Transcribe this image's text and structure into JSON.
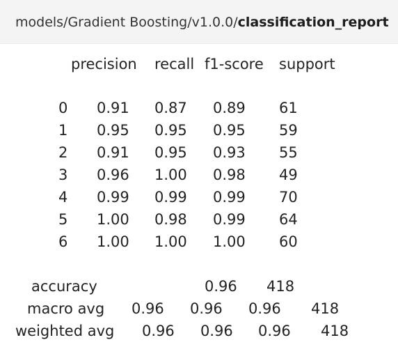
{
  "breadcrumb": {
    "path_prefix": "models/Gradient Boosting/v1.0.0/",
    "file_name": "classification_report"
  },
  "report": {
    "headers": [
      "precision",
      "recall",
      "f1-score",
      "support"
    ],
    "class_rows": [
      {
        "label": "0",
        "precision": "0.91",
        "recall": "0.87",
        "f1": "0.89",
        "support": "61"
      },
      {
        "label": "1",
        "precision": "0.95",
        "recall": "0.95",
        "f1": "0.95",
        "support": "59"
      },
      {
        "label": "2",
        "precision": "0.91",
        "recall": "0.95",
        "f1": "0.93",
        "support": "55"
      },
      {
        "label": "3",
        "precision": "0.96",
        "recall": "1.00",
        "f1": "0.98",
        "support": "49"
      },
      {
        "label": "4",
        "precision": "0.99",
        "recall": "0.99",
        "f1": "0.99",
        "support": "70"
      },
      {
        "label": "5",
        "precision": "1.00",
        "recall": "0.98",
        "f1": "0.99",
        "support": "64"
      },
      {
        "label": "6",
        "precision": "1.00",
        "recall": "1.00",
        "f1": "1.00",
        "support": "60"
      }
    ],
    "accuracy": {
      "label": "accuracy",
      "f1": "0.96",
      "support": "418"
    },
    "macro_avg": {
      "label": "macro avg",
      "precision": "0.96",
      "recall": "0.96",
      "f1": "0.96",
      "support": "418"
    },
    "weighted_avg": {
      "label": "weighted avg",
      "precision": "0.96",
      "recall": "0.96",
      "f1": "0.96",
      "support": "418"
    }
  }
}
